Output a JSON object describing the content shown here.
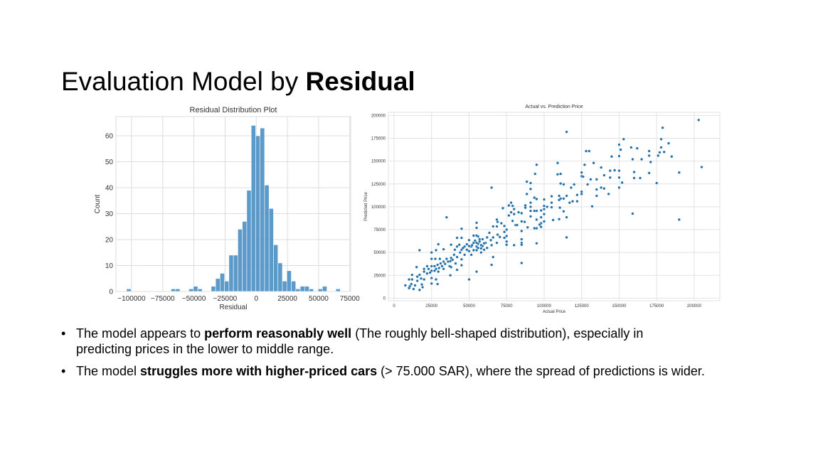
{
  "slide": {
    "title_regular": "Evaluation Model by ",
    "title_bold": "Residual",
    "bullet_symbol": "•",
    "bullets": [
      {
        "pre": "The model appears to ",
        "bold": "perform reasonably well",
        "post": " (The roughly bell-shaped distribution), especially in predicting prices in the lower to middle range."
      },
      {
        "pre": "The model ",
        "bold": "struggles more with higher-priced cars",
        "post": " (> 75.000 SAR), where the spread of predictions is wider."
      }
    ]
  },
  "chart_data": [
    {
      "type": "bar",
      "subtype": "histogram",
      "title": "Residual Distribution Plot",
      "xlabel": "Residual",
      "ylabel": "Count",
      "bin_start": -104000,
      "bin_width": 3570,
      "counts": [
        1,
        0,
        0,
        0,
        0,
        0,
        0,
        0,
        0,
        0,
        1,
        1,
        0,
        0,
        1,
        2,
        1,
        0,
        0,
        2,
        5,
        7,
        4,
        14,
        14,
        24,
        27,
        39,
        64,
        60,
        63,
        41,
        32,
        18,
        11,
        4,
        8,
        4,
        1,
        2,
        2,
        1,
        0,
        1,
        2,
        0,
        0,
        1
      ],
      "xlim": [
        -112500,
        75700
      ],
      "ylim": [
        0,
        67.4
      ],
      "xticks": [
        -100000,
        -75000,
        -50000,
        -25000,
        0,
        25000,
        50000,
        75000
      ],
      "xtick_labels": [
        "−100000",
        "−75000",
        "−50000",
        "−25000",
        "0",
        "25000",
        "50000",
        "75000"
      ],
      "yticks": [
        0,
        10,
        20,
        30,
        40,
        50,
        60
      ],
      "ytick_labels": [
        "0",
        "10",
        "20",
        "30",
        "40",
        "50",
        "60"
      ],
      "grid": true,
      "color": "#4a8fc4",
      "grid_color": "#dcdcdc"
    },
    {
      "type": "scatter",
      "title": "Actual vs. Prediction Price",
      "xlabel": "Actual Price",
      "ylabel": "Predicted Price",
      "xlim": [
        -3800,
        217100
      ],
      "ylim": [
        -2800,
        203400
      ],
      "xticks": [
        0,
        25000,
        50000,
        75000,
        100000,
        125000,
        150000,
        175000,
        200000
      ],
      "xtick_labels": [
        "0",
        "25000",
        "50000",
        "75000",
        "100000",
        "125000",
        "150000",
        "175000",
        "200000"
      ],
      "yticks": [
        0,
        25000,
        50000,
        75000,
        100000,
        125000,
        150000,
        175000,
        200000
      ],
      "ytick_labels": [
        "0",
        "25000",
        "50000",
        "75000",
        "100000",
        "125000",
        "150000",
        "175000",
        "200000"
      ],
      "grid": true,
      "color": "#1f6fa8",
      "grid_color": "#e2e2e2",
      "points_unit": "thousands",
      "points": [
        [
          203,
          195
        ],
        [
          205,
          143.5
        ],
        [
          179,
          186.5
        ],
        [
          115,
          182
        ],
        [
          190,
          137.5
        ],
        [
          190,
          86
        ],
        [
          159,
          92.5
        ],
        [
          115,
          66.5
        ],
        [
          85,
          38.5
        ],
        [
          50,
          20.5
        ],
        [
          35,
          88.5
        ],
        [
          65,
          121
        ],
        [
          153,
          174
        ],
        [
          150,
          168
        ],
        [
          151,
          162.5
        ],
        [
          158,
          165
        ],
        [
          162,
          164
        ],
        [
          170,
          161
        ],
        [
          178,
          174
        ],
        [
          178,
          165
        ],
        [
          183,
          169.5
        ],
        [
          180,
          160
        ],
        [
          177,
          159.5
        ],
        [
          176,
          156
        ],
        [
          185,
          155
        ],
        [
          170,
          156
        ],
        [
          171,
          149
        ],
        [
          165,
          152
        ],
        [
          159,
          152
        ],
        [
          160,
          138
        ],
        [
          160,
          131.5
        ],
        [
          164,
          131.5
        ],
        [
          170,
          137
        ],
        [
          175,
          126
        ],
        [
          150,
          155.5
        ],
        [
          145,
          155
        ],
        [
          150,
          139.5
        ],
        [
          150,
          132
        ],
        [
          152,
          126.5
        ],
        [
          150,
          121
        ],
        [
          144,
          139.5
        ],
        [
          147,
          140
        ],
        [
          144,
          132
        ],
        [
          143,
          114
        ],
        [
          138,
          143
        ],
        [
          140,
          134.5
        ],
        [
          138,
          121
        ],
        [
          140,
          120
        ],
        [
          133,
          148
        ],
        [
          131,
          130
        ],
        [
          135,
          130
        ],
        [
          135,
          119
        ],
        [
          135,
          112
        ],
        [
          132,
          100.5
        ],
        [
          128,
          161
        ],
        [
          130,
          161
        ],
        [
          127,
          146
        ],
        [
          125,
          137.5
        ],
        [
          125,
          133.5
        ],
        [
          126,
          133
        ],
        [
          129,
          124.5
        ],
        [
          125,
          116.5
        ],
        [
          125,
          114
        ],
        [
          122,
          113
        ],
        [
          122,
          106
        ],
        [
          120,
          124.5
        ],
        [
          118,
          121
        ],
        [
          119,
          106
        ],
        [
          117,
          104.5
        ],
        [
          115,
          112
        ],
        [
          115,
          88.5
        ],
        [
          113,
          124.5
        ],
        [
          111,
          125.5
        ],
        [
          109,
          148
        ],
        [
          109,
          135.5
        ],
        [
          111,
          136
        ],
        [
          110,
          112
        ],
        [
          111,
          109
        ],
        [
          113,
          109
        ],
        [
          110,
          107.5
        ],
        [
          110.5,
          99
        ],
        [
          113,
          95
        ],
        [
          110,
          86.5
        ],
        [
          106,
          85.5
        ],
        [
          105,
          111.5
        ],
        [
          105,
          104.5
        ],
        [
          105,
          99.5
        ],
        [
          102,
          100
        ],
        [
          100,
          108
        ],
        [
          100,
          101
        ],
        [
          100,
          97.5
        ],
        [
          100,
          92
        ],
        [
          100,
          84
        ],
        [
          98,
          96
        ],
        [
          98,
          88.5
        ],
        [
          98,
          82
        ],
        [
          98,
          78
        ],
        [
          97,
          80.5
        ],
        [
          95,
          146
        ],
        [
          94,
          136
        ],
        [
          91,
          126
        ],
        [
          91,
          119.5
        ],
        [
          88.5,
          127.5
        ],
        [
          88.5,
          114
        ],
        [
          91,
          104.5
        ],
        [
          91,
          100
        ],
        [
          91,
          95.5
        ],
        [
          91,
          89.5
        ],
        [
          95,
          108.5
        ],
        [
          95,
          95.5
        ],
        [
          95,
          86
        ],
        [
          95,
          76.5
        ],
        [
          95,
          60
        ],
        [
          93.5,
          110
        ],
        [
          93.5,
          95.5
        ],
        [
          93.5,
          76.5
        ],
        [
          89,
          77.5
        ],
        [
          87.5,
          101.5
        ],
        [
          87.5,
          99
        ],
        [
          85,
          93
        ],
        [
          85,
          84
        ],
        [
          85,
          73.5
        ],
        [
          85,
          64.5
        ],
        [
          85,
          60.5
        ],
        [
          85,
          58.5
        ],
        [
          87,
          83.5
        ],
        [
          83,
          94
        ],
        [
          81,
          80
        ],
        [
          82,
          80
        ],
        [
          80,
          58
        ],
        [
          80,
          97.5
        ],
        [
          80,
          92
        ],
        [
          78,
          104.5
        ],
        [
          79,
          101
        ],
        [
          78,
          94
        ],
        [
          79,
          84.5
        ],
        [
          75,
          75
        ],
        [
          75,
          68
        ],
        [
          75,
          62
        ],
        [
          75,
          58.5
        ],
        [
          76.5,
          90.5
        ],
        [
          76.5,
          101.5
        ],
        [
          72.5,
          98.5
        ],
        [
          73.5,
          79
        ],
        [
          73.5,
          72.5
        ],
        [
          73.5,
          66
        ],
        [
          71.5,
          82
        ],
        [
          70.5,
          67
        ],
        [
          69,
          69.5
        ],
        [
          68.5,
          86
        ],
        [
          69,
          83.5
        ],
        [
          68.5,
          78.5
        ],
        [
          68.5,
          60.5
        ],
        [
          66,
          66.5
        ],
        [
          66,
          78.5
        ],
        [
          64.5,
          63.5
        ],
        [
          63.5,
          71.5
        ],
        [
          66,
          45
        ],
        [
          65,
          36.5
        ],
        [
          65,
          58
        ],
        [
          62,
          66.5
        ],
        [
          61,
          60.5
        ],
        [
          59,
          64.5
        ],
        [
          59,
          57
        ],
        [
          58,
          54.5
        ],
        [
          57,
          64.5
        ],
        [
          56,
          67.5
        ],
        [
          56,
          59.5
        ],
        [
          55,
          82.5
        ],
        [
          55,
          77
        ],
        [
          55,
          68.5
        ],
        [
          55,
          60.5
        ],
        [
          55,
          56.5
        ],
        [
          55,
          52.5
        ],
        [
          55,
          29
        ],
        [
          53,
          60.5
        ],
        [
          53,
          52.5
        ],
        [
          53,
          68.5
        ],
        [
          51.5,
          56.5
        ],
        [
          51.5,
          47.5
        ],
        [
          50,
          63.5
        ],
        [
          50,
          57
        ],
        [
          50,
          51.5
        ],
        [
          48.5,
          59
        ],
        [
          48.5,
          53
        ],
        [
          47,
          56.5
        ],
        [
          47,
          47.5
        ],
        [
          45,
          76
        ],
        [
          45,
          66
        ],
        [
          45,
          53
        ],
        [
          45,
          42.5
        ],
        [
          45,
          36
        ],
        [
          43.5,
          58.5
        ],
        [
          42,
          66
        ],
        [
          42,
          56.5
        ],
        [
          42,
          45
        ],
        [
          42,
          31
        ],
        [
          40.5,
          53
        ],
        [
          40,
          47.5
        ],
        [
          38,
          58.5
        ],
        [
          38,
          44
        ],
        [
          37.5,
          40.5
        ],
        [
          37,
          35
        ],
        [
          37.5,
          25
        ],
        [
          35,
          43
        ],
        [
          34,
          37.5
        ],
        [
          33,
          32
        ],
        [
          33,
          53.5
        ],
        [
          32,
          35
        ],
        [
          30.5,
          43
        ],
        [
          29.5,
          29
        ],
        [
          29.5,
          59
        ],
        [
          29,
          36.5
        ],
        [
          28,
          32
        ],
        [
          28,
          52.5
        ],
        [
          27.5,
          43
        ],
        [
          27,
          35
        ],
        [
          25,
          50
        ],
        [
          25,
          43
        ],
        [
          25,
          35
        ],
        [
          25,
          30
        ],
        [
          25,
          22
        ],
        [
          25,
          16
        ],
        [
          23,
          32
        ],
        [
          22,
          35
        ],
        [
          20,
          32
        ],
        [
          20,
          29
        ],
        [
          20,
          20.5
        ],
        [
          17,
          52.5
        ],
        [
          15,
          34
        ],
        [
          15.5,
          23.5
        ],
        [
          17,
          25.5
        ],
        [
          18,
          21.5
        ],
        [
          18.5,
          15
        ],
        [
          19,
          12
        ],
        [
          17,
          9
        ],
        [
          15.5,
          19
        ],
        [
          14,
          14
        ],
        [
          13,
          10
        ],
        [
          12,
          25.5
        ],
        [
          12,
          20.5
        ],
        [
          11.5,
          15.5
        ],
        [
          10.5,
          13
        ],
        [
          10,
          20.5
        ],
        [
          10,
          11
        ],
        [
          7.5,
          14
        ],
        [
          29,
          15.5
        ],
        [
          28,
          20.5
        ],
        [
          38,
          34
        ],
        [
          57,
          62
        ],
        [
          58,
          58
        ],
        [
          60,
          60
        ],
        [
          62,
          55
        ],
        [
          54,
          63
        ],
        [
          56,
          55
        ],
        [
          52,
          58
        ],
        [
          58,
          50
        ],
        [
          60,
          53
        ],
        [
          44,
          50
        ],
        [
          46,
          55
        ],
        [
          39,
          42
        ],
        [
          41,
          38
        ],
        [
          36,
          40
        ],
        [
          31,
          38
        ],
        [
          33,
          40
        ],
        [
          27,
          30
        ],
        [
          30,
          33
        ],
        [
          24,
          28
        ],
        [
          22,
          27
        ]
      ]
    }
  ]
}
